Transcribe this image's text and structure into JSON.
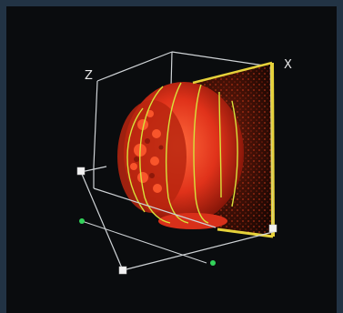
{
  "viewer": {
    "axes": {
      "x_label": "X",
      "z_label": "Z"
    }
  },
  "colors": {
    "frame": "#223344",
    "viewport": "#0a0c0e",
    "box_lines": "#cfd3d6",
    "volume": "#e0321a",
    "contours": "#d8e23a",
    "slice_frame": "#e6d23a",
    "handles_white": "#f2f2f2",
    "handles_green": "#33d25a"
  },
  "icons": {
    "handle": "cube-handle-icon",
    "point": "green-point-icon"
  }
}
